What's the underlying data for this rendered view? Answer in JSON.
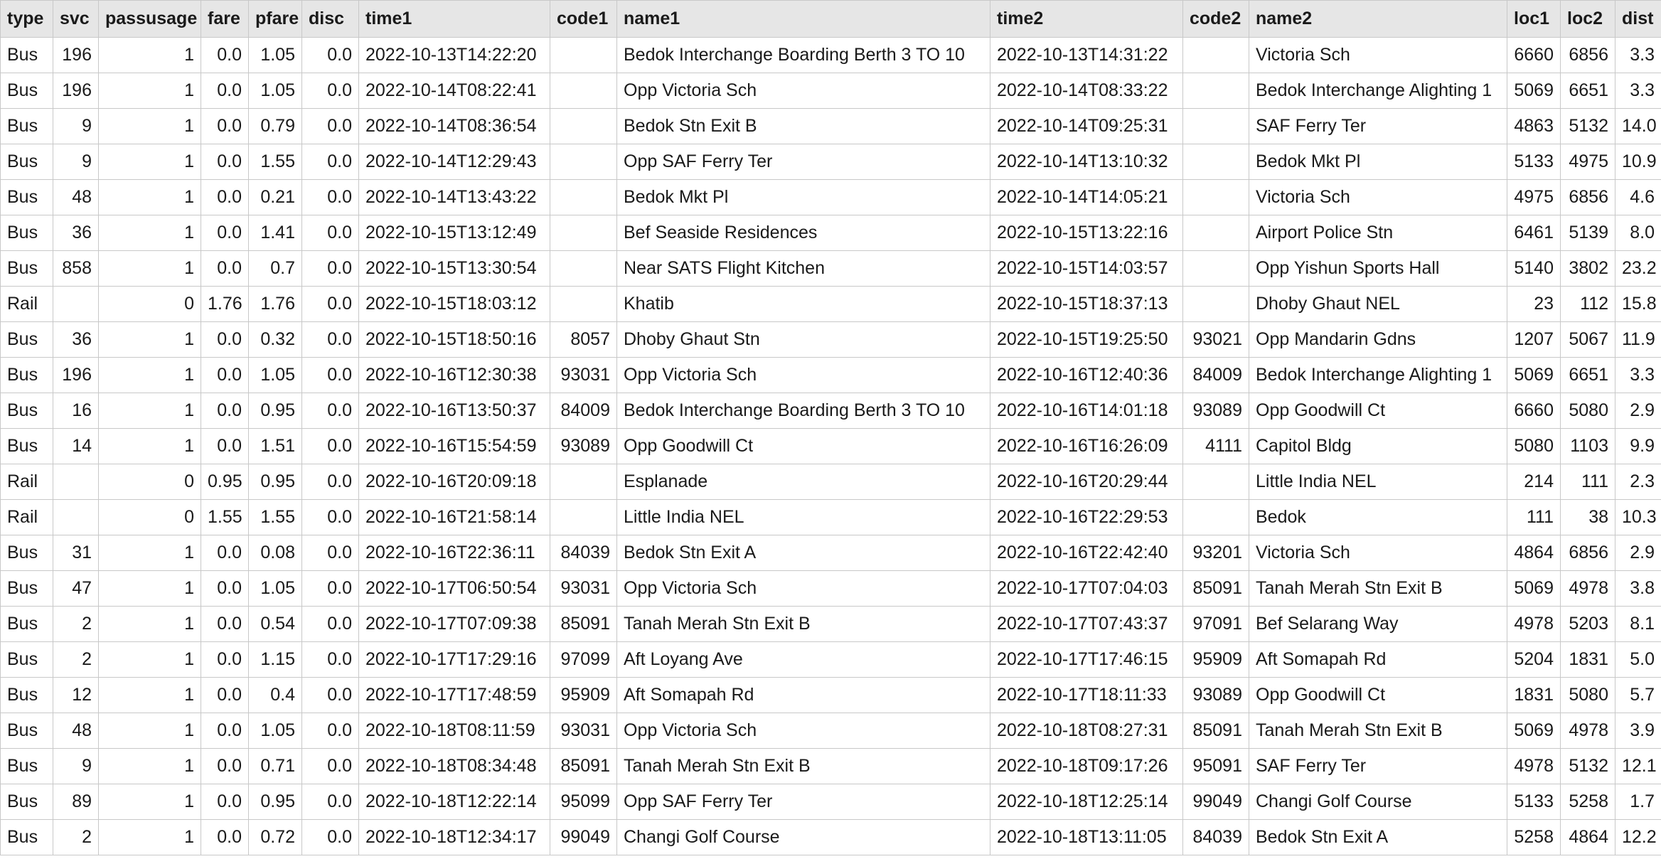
{
  "columns": [
    "type",
    "svc",
    "passusage",
    "fare",
    "pfare",
    "disc",
    "time1",
    "code1",
    "name1",
    "time2",
    "code2",
    "name2",
    "loc1",
    "loc2",
    "dist"
  ],
  "numeric_columns": [
    false,
    true,
    true,
    true,
    true,
    true,
    false,
    true,
    false,
    false,
    true,
    false,
    true,
    true,
    true
  ],
  "rows": [
    [
      "Bus",
      "196",
      "1",
      "0.0",
      "1.05",
      "0.0",
      "2022-10-13T14:22:20",
      "",
      "Bedok Interchange Boarding Berth 3 TO 10",
      "2022-10-13T14:31:22",
      "",
      "Victoria Sch",
      "6660",
      "6856",
      "3.3"
    ],
    [
      "Bus",
      "196",
      "1",
      "0.0",
      "1.05",
      "0.0",
      "2022-10-14T08:22:41",
      "",
      "Opp Victoria Sch",
      "2022-10-14T08:33:22",
      "",
      "Bedok Interchange Alighting 1",
      "5069",
      "6651",
      "3.3"
    ],
    [
      "Bus",
      "9",
      "1",
      "0.0",
      "0.79",
      "0.0",
      "2022-10-14T08:36:54",
      "",
      "Bedok Stn Exit B",
      "2022-10-14T09:25:31",
      "",
      "SAF Ferry Ter",
      "4863",
      "5132",
      "14.0"
    ],
    [
      "Bus",
      "9",
      "1",
      "0.0",
      "1.55",
      "0.0",
      "2022-10-14T12:29:43",
      "",
      "Opp SAF Ferry Ter",
      "2022-10-14T13:10:32",
      "",
      "Bedok Mkt Pl",
      "5133",
      "4975",
      "10.9"
    ],
    [
      "Bus",
      "48",
      "1",
      "0.0",
      "0.21",
      "0.0",
      "2022-10-14T13:43:22",
      "",
      "Bedok Mkt Pl",
      "2022-10-14T14:05:21",
      "",
      "Victoria Sch",
      "4975",
      "6856",
      "4.6"
    ],
    [
      "Bus",
      "36",
      "1",
      "0.0",
      "1.41",
      "0.0",
      "2022-10-15T13:12:49",
      "",
      "Bef Seaside Residences",
      "2022-10-15T13:22:16",
      "",
      "Airport Police Stn",
      "6461",
      "5139",
      "8.0"
    ],
    [
      "Bus",
      "858",
      "1",
      "0.0",
      "0.7",
      "0.0",
      "2022-10-15T13:30:54",
      "",
      "Near SATS Flight Kitchen",
      "2022-10-15T14:03:57",
      "",
      "Opp Yishun Sports Hall",
      "5140",
      "3802",
      "23.2"
    ],
    [
      "Rail",
      "",
      "0",
      "1.76",
      "1.76",
      "0.0",
      "2022-10-15T18:03:12",
      "",
      "Khatib",
      "2022-10-15T18:37:13",
      "",
      "Dhoby Ghaut NEL",
      "23",
      "112",
      "15.8"
    ],
    [
      "Bus",
      "36",
      "1",
      "0.0",
      "0.32",
      "0.0",
      "2022-10-15T18:50:16",
      "8057",
      "Dhoby Ghaut Stn",
      "2022-10-15T19:25:50",
      "93021",
      "Opp Mandarin Gdns",
      "1207",
      "5067",
      "11.9"
    ],
    [
      "Bus",
      "196",
      "1",
      "0.0",
      "1.05",
      "0.0",
      "2022-10-16T12:30:38",
      "93031",
      "Opp Victoria Sch",
      "2022-10-16T12:40:36",
      "84009",
      "Bedok Interchange Alighting 1",
      "5069",
      "6651",
      "3.3"
    ],
    [
      "Bus",
      "16",
      "1",
      "0.0",
      "0.95",
      "0.0",
      "2022-10-16T13:50:37",
      "84009",
      "Bedok Interchange Boarding Berth 3 TO 10",
      "2022-10-16T14:01:18",
      "93089",
      "Opp Goodwill Ct",
      "6660",
      "5080",
      "2.9"
    ],
    [
      "Bus",
      "14",
      "1",
      "0.0",
      "1.51",
      "0.0",
      "2022-10-16T15:54:59",
      "93089",
      "Opp Goodwill Ct",
      "2022-10-16T16:26:09",
      "4111",
      "Capitol Bldg",
      "5080",
      "1103",
      "9.9"
    ],
    [
      "Rail",
      "",
      "0",
      "0.95",
      "0.95",
      "0.0",
      "2022-10-16T20:09:18",
      "",
      "Esplanade",
      "2022-10-16T20:29:44",
      "",
      "Little India NEL",
      "214",
      "111",
      "2.3"
    ],
    [
      "Rail",
      "",
      "0",
      "1.55",
      "1.55",
      "0.0",
      "2022-10-16T21:58:14",
      "",
      "Little India NEL",
      "2022-10-16T22:29:53",
      "",
      "Bedok",
      "111",
      "38",
      "10.3"
    ],
    [
      "Bus",
      "31",
      "1",
      "0.0",
      "0.08",
      "0.0",
      "2022-10-16T22:36:11",
      "84039",
      "Bedok Stn Exit A",
      "2022-10-16T22:42:40",
      "93201",
      "Victoria Sch",
      "4864",
      "6856",
      "2.9"
    ],
    [
      "Bus",
      "47",
      "1",
      "0.0",
      "1.05",
      "0.0",
      "2022-10-17T06:50:54",
      "93031",
      "Opp Victoria Sch",
      "2022-10-17T07:04:03",
      "85091",
      "Tanah Merah Stn Exit B",
      "5069",
      "4978",
      "3.8"
    ],
    [
      "Bus",
      "2",
      "1",
      "0.0",
      "0.54",
      "0.0",
      "2022-10-17T07:09:38",
      "85091",
      "Tanah Merah Stn Exit B",
      "2022-10-17T07:43:37",
      "97091",
      "Bef Selarang Way",
      "4978",
      "5203",
      "8.1"
    ],
    [
      "Bus",
      "2",
      "1",
      "0.0",
      "1.15",
      "0.0",
      "2022-10-17T17:29:16",
      "97099",
      "Aft Loyang Ave",
      "2022-10-17T17:46:15",
      "95909",
      "Aft Somapah Rd",
      "5204",
      "1831",
      "5.0"
    ],
    [
      "Bus",
      "12",
      "1",
      "0.0",
      "0.4",
      "0.0",
      "2022-10-17T17:48:59",
      "95909",
      "Aft Somapah Rd",
      "2022-10-17T18:11:33",
      "93089",
      "Opp Goodwill Ct",
      "1831",
      "5080",
      "5.7"
    ],
    [
      "Bus",
      "48",
      "1",
      "0.0",
      "1.05",
      "0.0",
      "2022-10-18T08:11:59",
      "93031",
      "Opp Victoria Sch",
      "2022-10-18T08:27:31",
      "85091",
      "Tanah Merah Stn Exit B",
      "5069",
      "4978",
      "3.9"
    ],
    [
      "Bus",
      "9",
      "1",
      "0.0",
      "0.71",
      "0.0",
      "2022-10-18T08:34:48",
      "85091",
      "Tanah Merah Stn Exit B",
      "2022-10-18T09:17:26",
      "95091",
      "SAF Ferry Ter",
      "4978",
      "5132",
      "12.1"
    ],
    [
      "Bus",
      "89",
      "1",
      "0.0",
      "0.95",
      "0.0",
      "2022-10-18T12:22:14",
      "95099",
      "Opp SAF Ferry Ter",
      "2022-10-18T12:25:14",
      "99049",
      "Changi Golf Course",
      "5133",
      "5258",
      "1.7"
    ],
    [
      "Bus",
      "2",
      "1",
      "0.0",
      "0.72",
      "0.0",
      "2022-10-18T12:34:17",
      "99049",
      "Changi Golf Course",
      "2022-10-18T13:11:05",
      "84039",
      "Bedok Stn Exit A",
      "5258",
      "4864",
      "12.2"
    ]
  ]
}
